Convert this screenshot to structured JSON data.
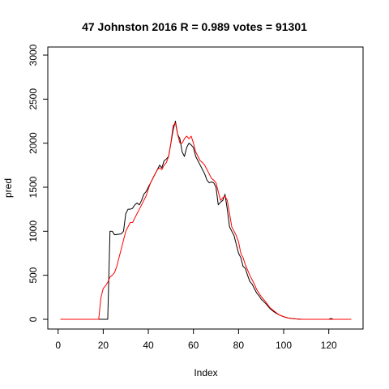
{
  "chart_data": {
    "type": "line",
    "title": "47 Johnston 2016 R = 0.989 votes = 91301",
    "xlabel": "Index",
    "ylabel": "pred",
    "xlim": [
      1,
      130
    ],
    "ylim": [
      0,
      3000
    ],
    "x_ticks": [
      0,
      20,
      40,
      60,
      80,
      100,
      120
    ],
    "y_ticks": [
      0,
      500,
      1000,
      1500,
      2000,
      2500,
      3000
    ],
    "grid": false,
    "legend": "none",
    "series": [
      {
        "color": "#000000",
        "x": [
          1,
          5,
          10,
          15,
          18,
          21,
          22,
          23,
          24,
          25,
          28,
          29,
          30,
          31,
          32,
          33,
          34,
          35,
          36,
          37,
          38,
          39,
          40,
          41,
          42,
          43,
          44,
          45,
          46,
          47,
          48,
          49,
          50,
          51,
          52,
          53,
          54,
          55,
          56,
          57,
          58,
          59,
          60,
          61,
          62,
          63,
          64,
          65,
          66,
          67,
          68,
          69,
          70,
          71,
          72,
          73,
          74,
          75,
          76,
          77,
          78,
          79,
          80,
          81,
          82,
          83,
          84,
          85,
          86,
          87,
          88,
          89,
          90,
          92,
          94,
          96,
          98,
          100,
          102,
          104,
          106,
          108,
          110,
          115,
          120,
          121,
          122,
          125,
          130
        ],
        "y": [
          0,
          0,
          0,
          0,
          0,
          0,
          0,
          1000,
          1000,
          960,
          970,
          1000,
          1200,
          1250,
          1250,
          1260,
          1300,
          1320,
          1300,
          1350,
          1420,
          1450,
          1500,
          1550,
          1600,
          1650,
          1700,
          1750,
          1720,
          1800,
          1820,
          1850,
          2000,
          2150,
          2250,
          2100,
          2050,
          1900,
          1850,
          1950,
          2000,
          1980,
          1950,
          1850,
          1800,
          1750,
          1700,
          1650,
          1580,
          1550,
          1560,
          1550,
          1500,
          1300,
          1330,
          1350,
          1420,
          1250,
          1050,
          1000,
          950,
          850,
          750,
          700,
          600,
          580,
          500,
          430,
          400,
          350,
          300,
          270,
          230,
          180,
          120,
          80,
          50,
          30,
          15,
          8,
          3,
          0,
          0,
          0,
          0,
          10,
          0,
          0,
          0
        ]
      },
      {
        "color": "#ff0000",
        "x": [
          1,
          5,
          10,
          15,
          17,
          18,
          19,
          20,
          21,
          22,
          23,
          24,
          25,
          26,
          27,
          28,
          29,
          30,
          31,
          32,
          33,
          34,
          35,
          36,
          37,
          38,
          39,
          40,
          41,
          42,
          43,
          44,
          45,
          46,
          47,
          48,
          49,
          50,
          51,
          52,
          53,
          54,
          55,
          56,
          57,
          58,
          59,
          60,
          61,
          62,
          63,
          64,
          65,
          66,
          67,
          68,
          69,
          70,
          71,
          72,
          73,
          74,
          75,
          76,
          77,
          78,
          79,
          80,
          81,
          82,
          83,
          84,
          85,
          86,
          87,
          88,
          89,
          90,
          92,
          94,
          96,
          98,
          100,
          102,
          104,
          106,
          108,
          110,
          115,
          120,
          125,
          130
        ],
        "y": [
          0,
          0,
          0,
          0,
          0,
          0,
          250,
          350,
          380,
          420,
          480,
          500,
          530,
          600,
          700,
          800,
          900,
          1000,
          1050,
          1100,
          1100,
          1150,
          1200,
          1250,
          1300,
          1350,
          1400,
          1480,
          1550,
          1600,
          1650,
          1700,
          1720,
          1700,
          1750,
          1780,
          1850,
          2000,
          2200,
          2230,
          2100,
          2000,
          2000,
          2050,
          2080,
          2050,
          2080,
          2000,
          1900,
          1850,
          1800,
          1780,
          1750,
          1700,
          1650,
          1600,
          1580,
          1550,
          1450,
          1350,
          1380,
          1400,
          1350,
          1200,
          1050,
          1000,
          950,
          880,
          750,
          700,
          620,
          560,
          500,
          450,
          400,
          340,
          300,
          260,
          200,
          130,
          90,
          50,
          30,
          15,
          8,
          3,
          0,
          0,
          0,
          0,
          0,
          0
        ]
      }
    ]
  }
}
